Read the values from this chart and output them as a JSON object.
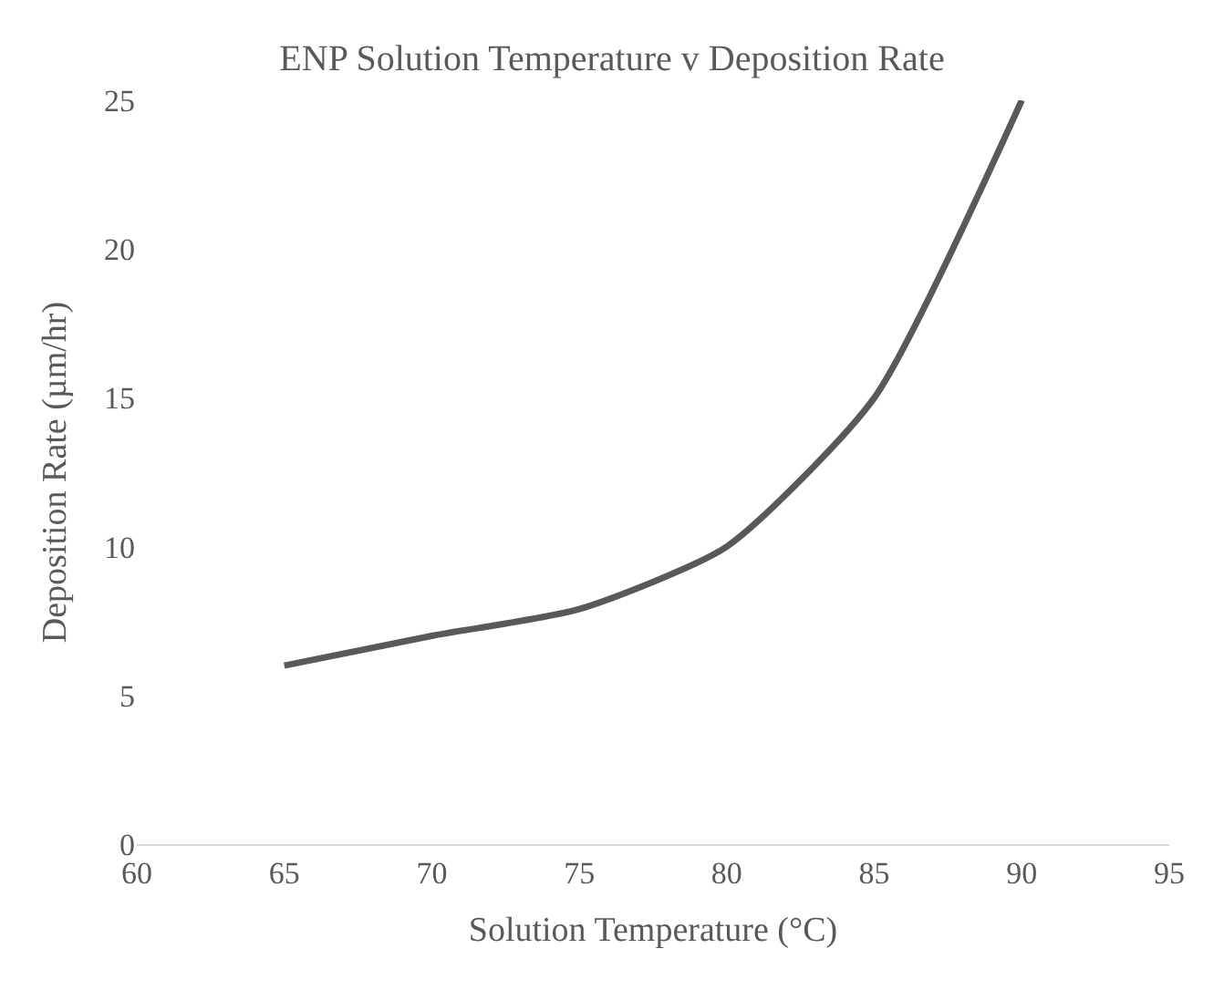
{
  "chart_data": {
    "type": "line",
    "title": "ENP Solution Temperature v Deposition Rate",
    "xlabel": "Solution Temperature (°C)",
    "ylabel": "Deposition Rate (µm/hr)",
    "x": [
      65,
      70,
      75,
      80,
      85,
      90
    ],
    "series": [
      {
        "color": "#595959",
        "values": [
          6,
          7,
          7.9,
          10,
          15,
          25
        ]
      }
    ],
    "xlim": [
      60,
      95
    ],
    "xticks": [
      60,
      65,
      70,
      75,
      80,
      85,
      90,
      95
    ],
    "ylim": [
      0,
      25
    ],
    "yticks": [
      0,
      5,
      10,
      15,
      20,
      25
    ],
    "marker": "none",
    "line_style": "solid"
  }
}
